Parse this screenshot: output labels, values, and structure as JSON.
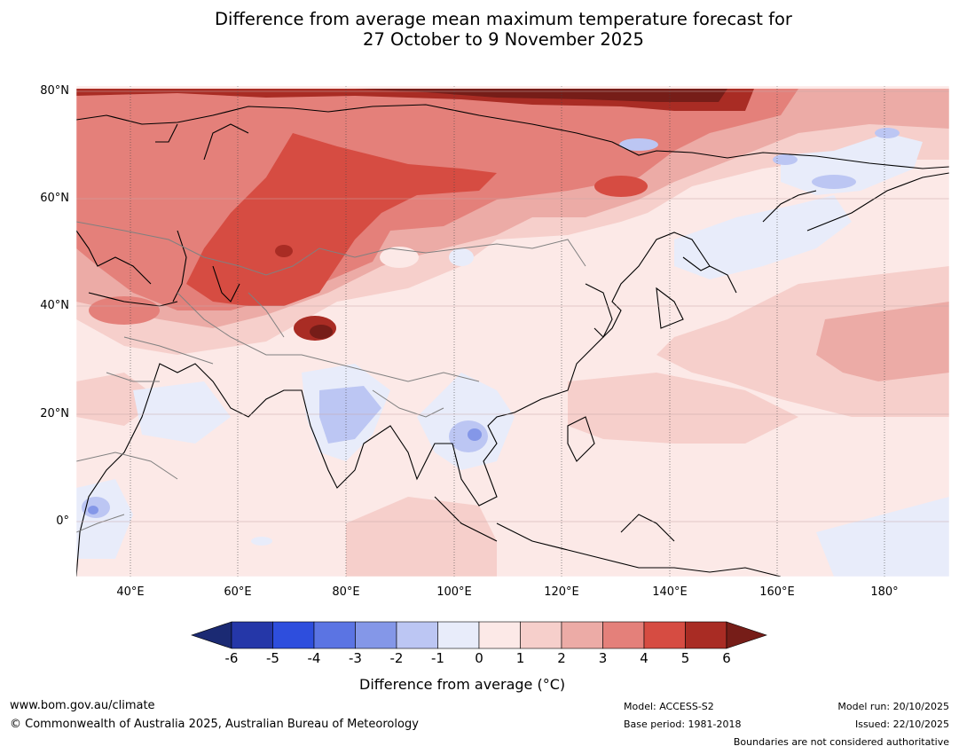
{
  "title_line1": "Difference from average mean maximum temperature forecast for",
  "title_line2": "27 October to 9 November 2025",
  "map": {
    "region": "Asia",
    "lat_labels": [
      "80°N",
      "60°N",
      "40°N",
      "20°N",
      "0°"
    ],
    "lon_labels": [
      "40°E",
      "60°E",
      "80°E",
      "100°E",
      "120°E",
      "140°E",
      "160°E",
      "180°"
    ]
  },
  "colorbar": {
    "ticks": [
      "-6",
      "-5",
      "-4",
      "-3",
      "-2",
      "-1",
      "0",
      "1",
      "2",
      "3",
      "4",
      "5",
      "6"
    ],
    "colors": [
      "#1b2a73",
      "#2537a8",
      "#2e4edd",
      "#5b74e3",
      "#8497e8",
      "#bcc6f3",
      "#e8ecfa",
      "#fce9e7",
      "#f6cfcb",
      "#ecaba6",
      "#e4807a",
      "#d64c42",
      "#a92c24",
      "#761d18"
    ],
    "title": "Difference from average (°C)"
  },
  "footer": {
    "website": "www.bom.gov.au/climate",
    "copyright": "© Commonwealth of Australia 2025, Australian Bureau of Meteorology",
    "model": "Model: ACCESS-S2",
    "base_period": "Base period: 1981-2018",
    "model_run": "Model run: 20/10/2025",
    "issued": "Issued: 22/10/2025",
    "disclaimer": "Boundaries are not considered authoritative"
  }
}
